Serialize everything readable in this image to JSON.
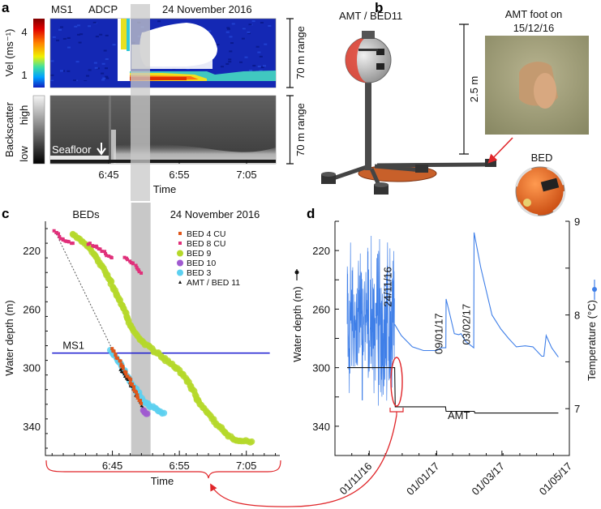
{
  "figure": {
    "panel_labels": {
      "a": "a",
      "b": "b",
      "c": "c",
      "d": "d"
    },
    "a": {
      "ms1": "MS1",
      "adcp": "ADCP",
      "date": "24 November 2016",
      "vel_label": "Vel (ms⁻¹)",
      "vel_ticks": [
        "4",
        "1"
      ],
      "backscatter_label": "Backscatter",
      "high": "high",
      "low": "low",
      "seafloor": "Seafloor",
      "range_top": "70 m range",
      "range_bottom": "70 m range",
      "xticks": [
        "6:45",
        "6:55",
        "7:05"
      ],
      "xlabel": "Time"
    },
    "b": {
      "amt_label": "AMT / BED11",
      "scale": "2.5 m",
      "photo_caption_1": "AMT foot on",
      "photo_caption_2": "15/12/16",
      "bed": "BED"
    },
    "c": {
      "beds": "BEDs",
      "date": "24 November 2016",
      "ms1": "MS1"
    },
    "d": {
      "ylabel_left": "Water depth (m)",
      "ylabel_right": "Temperature (°C)"
    },
    "colors": {
      "shade": "#c8c8c8",
      "ms1_line": "#1a1ad0",
      "temp": "#3f7fe8",
      "depth": "#111111",
      "arrow": "#e0262a"
    }
  },
  "chart_data": [
    {
      "id": "a-velocity",
      "type": "heatmap",
      "title": "MS1 ADCP velocity",
      "ylabel": "Vel (ms⁻¹)",
      "colorbar_ticks": [
        1,
        4
      ],
      "xlim_minutes_after_6h": [
        36.7,
        69.2
      ],
      "xticks": [
        "6:45",
        "6:55",
        "7:05"
      ],
      "shaded_interval_minutes": [
        47.8,
        50.7
      ]
    },
    {
      "id": "a-backscatter",
      "type": "heatmap",
      "ylabel": "Backscatter",
      "colorbar_ticks": [
        "low",
        "high"
      ],
      "xlabel": "Time",
      "xticks": [
        "6:45",
        "6:55",
        "7:05"
      ]
    },
    {
      "id": "c",
      "type": "scatter",
      "title": "BEDs — 24 November 2016",
      "xlabel": "Time",
      "ylabel": "Water depth (m)",
      "x_unit": "minutes after 06:00",
      "xlim": [
        35,
        70
      ],
      "ylim": [
        200,
        360
      ],
      "y_inverted": true,
      "xticks": [
        {
          "v": 45,
          "label": "6:45"
        },
        {
          "v": 55,
          "label": "6:55"
        },
        {
          "v": 65,
          "label": "7:05"
        }
      ],
      "yticks": [
        220,
        260,
        300,
        340
      ],
      "shaded_interval": [
        47.8,
        50.7
      ],
      "hline": {
        "label": "MS1",
        "y": 290,
        "x": [
          36,
          68.5
        ]
      },
      "legend_position": "top-right",
      "series": [
        {
          "name": "BED 4 CU",
          "color": "#e0561a",
          "marker": "square",
          "points": [
            [
              44.9,
              287
            ],
            [
              46,
              295
            ],
            [
              47,
              303
            ],
            [
              48,
              312
            ],
            [
              49.3,
              324.5
            ]
          ]
        },
        {
          "name": "BED 8 CU",
          "color": "#e0307a",
          "marker": "square",
          "points": [
            [
              36.4,
              206.6
            ],
            [
              37.9,
              213.8
            ],
            [
              39.1,
              215
            ]
          ],
          "extra_segments": [
            [
              [
                41.5,
                215
              ],
              [
                43.5,
                220.5
              ],
              [
                44.9,
                224.9
              ]
            ],
            [
              [
                46.9,
                224.9
              ],
              [
                48.4,
                229.9
              ],
              [
                49.3,
                235.4
              ]
            ]
          ]
        },
        {
          "name": "BED 9",
          "color": "#b5d82a",
          "marker": "circle",
          "points": [
            [
              39.0,
              208.3
            ],
            [
              41.5,
              217.7
            ],
            [
              43.6,
              231.5
            ],
            [
              45.1,
              245.4
            ],
            [
              46.6,
              259.2
            ],
            [
              47.9,
              273.0
            ],
            [
              49.3,
              281.4
            ],
            [
              51.1,
              288.0
            ],
            [
              53.0,
              295.2
            ],
            [
              54.8,
              300.7
            ],
            [
              56.6,
              311.8
            ],
            [
              57.8,
              322.9
            ],
            [
              59.3,
              331.2
            ],
            [
              60.8,
              339.5
            ],
            [
              62.6,
              347.8
            ],
            [
              64.4,
              350.5
            ],
            [
              65.8,
              350.5
            ]
          ]
        },
        {
          "name": "BED 10",
          "color": "#a05ad0",
          "marker": "circle",
          "points": [
            [
              49.5,
              328.5
            ],
            [
              49.8,
              330.5
            ],
            [
              50.2,
              331.5
            ]
          ]
        },
        {
          "name": "BED 3",
          "color": "#5cd0f0",
          "marker": "circle",
          "points": [
            [
              44.8,
              288
            ],
            [
              46.5,
              300
            ],
            [
              48,
              312
            ],
            [
              49.9,
              324
            ],
            [
              51.2,
              328
            ],
            [
              52.7,
              331
            ]
          ]
        },
        {
          "name": "AMT / BED 11",
          "color": "#111111",
          "marker": "triangle",
          "points": [
            [
              46.1,
              300.7
            ],
            [
              47.5,
              310
            ],
            [
              49,
              322
            ],
            [
              50,
              331
            ]
          ],
          "dashed_link": [
            [
              36.4,
              206.6
            ],
            [
              44.8,
              285.8
            ]
          ]
        }
      ]
    },
    {
      "id": "d",
      "type": "line",
      "x_unit": "days since 01/10/16",
      "xlim": [
        0,
        212
      ],
      "xticks": [
        {
          "v": 31,
          "label": "01/11/16"
        },
        {
          "v": 92,
          "label": "01/01/17"
        },
        {
          "v": 151,
          "label": "01/03/17"
        },
        {
          "v": 212,
          "label": "01/05/17"
        }
      ],
      "ylabel_left": "Water depth (m)",
      "ylim_left": [
        200,
        360
      ],
      "yticks_left": [
        220,
        260,
        300,
        340
      ],
      "ylabel_right": "Temperature (°C)",
      "ylim_right": [
        6.5,
        9
      ],
      "yticks_right": [
        7,
        8,
        9
      ],
      "series": [
        {
          "name": "Temperature",
          "axis": "right",
          "color": "#3f7fe8",
          "noisy_segment": {
            "x": [
              11,
              54
            ],
            "range": [
              6.95,
              8.85
            ]
          },
          "points": [
            [
              54,
              7.9
            ],
            [
              60,
              7.78
            ],
            [
              70,
              7.66
            ],
            [
              80,
              7.62
            ],
            [
              92,
              7.62
            ],
            [
              96,
              7.65
            ],
            [
              100.3,
              7.65
            ],
            [
              100.5,
              8.17
            ],
            [
              104,
              8.0
            ],
            [
              108,
              7.8
            ],
            [
              112,
              7.79
            ],
            [
              114,
              7.8
            ],
            [
              118,
              7.72
            ],
            [
              125.5,
              7.65
            ],
            [
              125.8,
              8.88
            ],
            [
              132,
              8.5
            ],
            [
              142,
              8.0
            ],
            [
              150,
              7.85
            ],
            [
              157,
              7.75
            ],
            [
              164,
              7.66
            ],
            [
              172,
              7.67
            ],
            [
              179,
              7.66
            ],
            [
              187,
              7.56
            ],
            [
              189,
              7.56
            ],
            [
              191,
              7.78
            ],
            [
              196,
              7.65
            ],
            [
              202,
              7.55
            ]
          ]
        },
        {
          "name": "AMT",
          "axis": "left",
          "color": "#111111",
          "points": [
            [
              11,
              300
            ],
            [
              54,
              300
            ],
            [
              54.5,
              326.7
            ],
            [
              100,
              326.7
            ],
            [
              100.5,
              329.8
            ],
            [
              126,
              329.8
            ],
            [
              126.5,
              331
            ],
            [
              202,
              331
            ]
          ]
        }
      ],
      "annotations": [
        {
          "text": "24/11/16",
          "x": 54,
          "y_temp": 8.3
        },
        {
          "text": "09/01/17",
          "x": 100,
          "y_temp": 7.8
        },
        {
          "text": "03/02/17",
          "x": 125,
          "y_temp": 7.9
        },
        {
          "text": "AMT",
          "x": 112,
          "y_depth": 335
        }
      ]
    }
  ]
}
